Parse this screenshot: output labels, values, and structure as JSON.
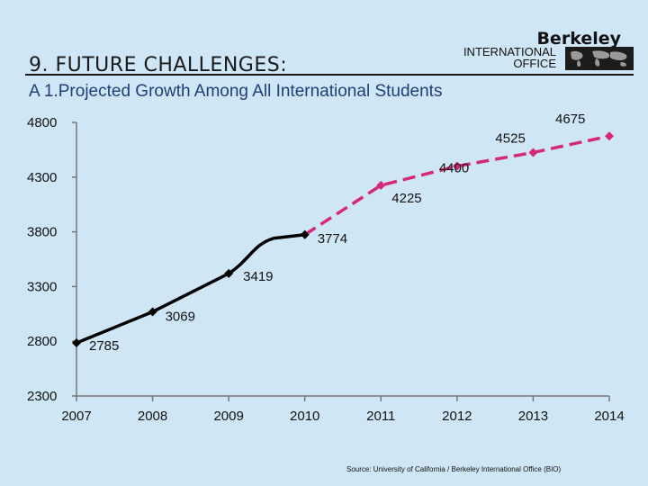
{
  "header": {
    "title": "9. FUTURE CHALLENGES:",
    "subtitle": "A 1.Projected Growth Among All International Students"
  },
  "logo": {
    "brand": "Berkeley",
    "line1": "INTERNATIONAL",
    "line2": "OFFICE"
  },
  "source": "Source: University of California / Berkeley International Office (BIO)",
  "colors": {
    "actual": "#000000",
    "projected": "#d6287a",
    "background": "#cfe6f7"
  },
  "chart_data": {
    "type": "line",
    "title": "A 1.Projected Growth Among All International Students",
    "xlabel": "",
    "ylabel": "",
    "categories": [
      "2007",
      "2008",
      "2009",
      "2010",
      "2011",
      "2012",
      "2013",
      "2014"
    ],
    "ylim": [
      2300,
      4800
    ],
    "yticks": [
      "2300",
      "2800",
      "3300",
      "3800",
      "4300",
      "4800"
    ],
    "series": [
      {
        "style": "solid",
        "color": "#000000",
        "points": [
          {
            "x": "2007",
            "y": 2785,
            "label": "2785"
          },
          {
            "x": "2008",
            "y": 3069,
            "label": "3069"
          },
          {
            "x": "2009",
            "y": 3419,
            "label": "3419"
          },
          {
            "x": "2010",
            "y": 3774,
            "label": "3774"
          }
        ]
      },
      {
        "style": "dashed",
        "color": "#d6287a",
        "points": [
          {
            "x": "2010",
            "y": 3774,
            "label": "3774"
          },
          {
            "x": "2011",
            "y": 4225,
            "label": "4225"
          },
          {
            "x": "2012",
            "y": 4400,
            "label": "4400"
          },
          {
            "x": "2013",
            "y": 4525,
            "label": "4525"
          },
          {
            "x": "2014",
            "y": 4675,
            "label": "4675"
          }
        ]
      }
    ],
    "grid": false,
    "legend": "none"
  }
}
